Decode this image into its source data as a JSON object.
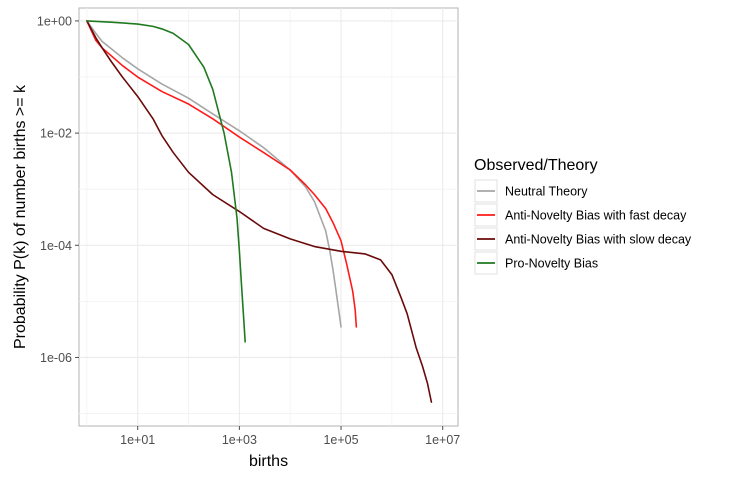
{
  "chart_data": {
    "type": "line",
    "xlabel": "births",
    "ylabel": "Probability P(k) of number births >= k",
    "x_scale": "log10",
    "y_scale": "log10",
    "xlim": [
      0.7,
      20000000
    ],
    "ylim": [
      6e-08,
      1.7
    ],
    "x_ticks": [
      {
        "value": 10,
        "label": "1e+01"
      },
      {
        "value": 1000,
        "label": "1e+03"
      },
      {
        "value": 100000,
        "label": "1e+05"
      },
      {
        "value": 10000000,
        "label": "1e+07"
      }
    ],
    "y_ticks": [
      {
        "value": 1,
        "label": "1e+00"
      },
      {
        "value": 0.01,
        "label": "1e-02"
      },
      {
        "value": 0.0001,
        "label": "1e-04"
      },
      {
        "value": 1e-06,
        "label": "1e-06"
      }
    ],
    "grid": true,
    "legend": {
      "title": "Observed/Theory",
      "position": "right"
    },
    "series": [
      {
        "name": "Neutral Theory",
        "color": "#a6a6a6",
        "points": [
          [
            1,
            1
          ],
          [
            1.5,
            0.6
          ],
          [
            2,
            0.43
          ],
          [
            3,
            0.32
          ],
          [
            5,
            0.22
          ],
          [
            10,
            0.14
          ],
          [
            30,
            0.075
          ],
          [
            100,
            0.042
          ],
          [
            300,
            0.022
          ],
          [
            1000,
            0.011
          ],
          [
            3000,
            0.0055
          ],
          [
            10000,
            0.0022
          ],
          [
            20000,
            0.0011
          ],
          [
            30000,
            0.0006
          ],
          [
            50000,
            0.00018
          ],
          [
            60000,
            8e-05
          ],
          [
            70000,
            3.5e-05
          ],
          [
            80000,
            1.5e-05
          ],
          [
            90000,
            7e-06
          ],
          [
            100000,
            3.5e-06
          ]
        ]
      },
      {
        "name": "Anti-Novelty Bias with fast decay",
        "color": "#ff1a1a",
        "points": [
          [
            1,
            1
          ],
          [
            1.5,
            0.45
          ],
          [
            2,
            0.33
          ],
          [
            3,
            0.24
          ],
          [
            5,
            0.16
          ],
          [
            10,
            0.1
          ],
          [
            30,
            0.055
          ],
          [
            100,
            0.033
          ],
          [
            300,
            0.018
          ],
          [
            1000,
            0.0085
          ],
          [
            3000,
            0.0045
          ],
          [
            10000,
            0.0022
          ],
          [
            20000,
            0.0012
          ],
          [
            30000,
            0.0008
          ],
          [
            50000,
            0.00045
          ],
          [
            70000,
            0.00025
          ],
          [
            100000,
            0.00012
          ],
          [
            130000,
            4.5e-05
          ],
          [
            170000,
            1.5e-05
          ],
          [
            190000,
            7e-06
          ],
          [
            200000,
            3.5e-06
          ]
        ]
      },
      {
        "name": "Anti-Novelty Bias with slow decay",
        "color": "#6b0a0a",
        "points": [
          [
            1,
            1
          ],
          [
            1.5,
            0.5
          ],
          [
            2,
            0.33
          ],
          [
            3,
            0.19
          ],
          [
            5,
            0.1
          ],
          [
            10,
            0.045
          ],
          [
            20,
            0.018
          ],
          [
            30,
            0.009
          ],
          [
            50,
            0.0045
          ],
          [
            100,
            0.002
          ],
          [
            300,
            0.0008
          ],
          [
            1000,
            0.0004
          ],
          [
            3000,
            0.0002
          ],
          [
            10000,
            0.00013
          ],
          [
            30000,
            9.5e-05
          ],
          [
            100000,
            7.8e-05
          ],
          [
            300000,
            7e-05
          ],
          [
            600000,
            5.5e-05
          ],
          [
            1000000,
            3e-05
          ],
          [
            1500000,
            1.2e-05
          ],
          [
            2000000,
            6e-06
          ],
          [
            3000000,
            1.5e-06
          ],
          [
            4000000,
            7e-07
          ],
          [
            5000000,
            3.5e-07
          ],
          [
            6000000,
            1.6e-07
          ]
        ]
      },
      {
        "name": "Pro-Novelty Bias",
        "color": "#1f7a1f",
        "points": [
          [
            1,
            1
          ],
          [
            3,
            0.95
          ],
          [
            10,
            0.88
          ],
          [
            20,
            0.8
          ],
          [
            30,
            0.72
          ],
          [
            50,
            0.6
          ],
          [
            100,
            0.38
          ],
          [
            200,
            0.15
          ],
          [
            300,
            0.06
          ],
          [
            500,
            0.01
          ],
          [
            700,
            0.002
          ],
          [
            900,
            0.0003
          ],
          [
            1000,
            8e-05
          ],
          [
            1100,
            2e-05
          ],
          [
            1200,
            6e-06
          ],
          [
            1300,
            1.9e-06
          ]
        ]
      }
    ]
  }
}
